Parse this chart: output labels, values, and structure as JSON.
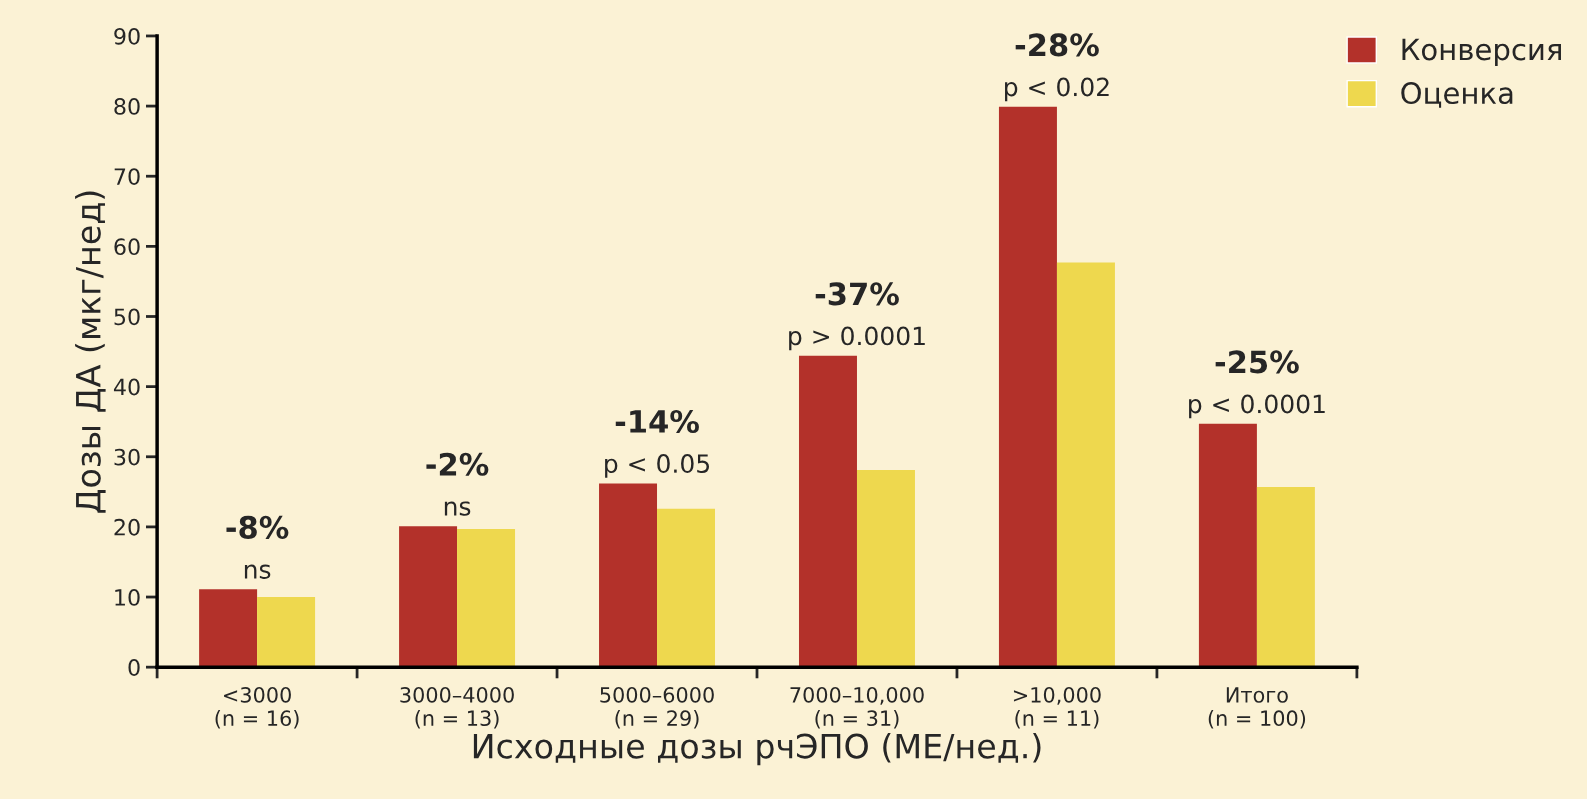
{
  "chart_data": {
    "type": "bar",
    "xlabel": "Исходные дозы рчЭПО (МЕ/нед.)",
    "ylabel": "Дозы ДА (мкг/нед)",
    "categories": [
      "<3000\n(n = 16)",
      "3000–4000\n(n = 13)",
      "5000–6000\n(n = 29)",
      "7000–10,000\n(n = 31)",
      ">10,000\n(n = 11)",
      "Итого\n(n = 100)"
    ],
    "series": [
      {
        "name": "Конверсия",
        "color": "#b3312a",
        "values": [
          11.1,
          20.1,
          26.2,
          44.4,
          79.9,
          34.7
        ]
      },
      {
        "name": "Оценка",
        "color": "#eed84e",
        "values": [
          10.0,
          19.7,
          22.6,
          28.1,
          57.7,
          25.7
        ]
      }
    ],
    "ylim": [
      0,
      90
    ],
    "yticks": [
      0,
      10,
      20,
      30,
      40,
      50,
      60,
      70,
      80,
      90
    ],
    "grid": false,
    "legend": "top right",
    "annotations": [
      "-8%",
      "ns",
      "-2%",
      "ns",
      "-14%",
      "p < 0.05",
      "-37%",
      "p > 0.0001",
      "-28%",
      "p < 0.02",
      "-25%",
      "p < 0.0001"
    ]
  }
}
